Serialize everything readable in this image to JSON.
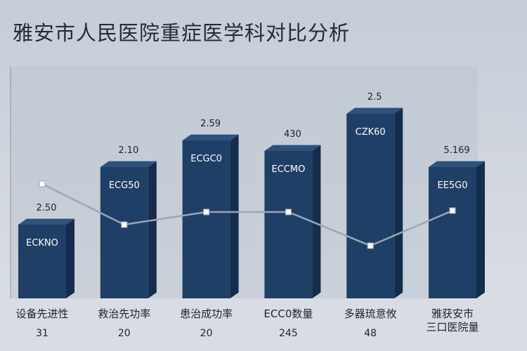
{
  "chart_data": {
    "type": "bar",
    "title": "雅安市人民医院重症医学科对比分析",
    "categories": [
      "设备先进性",
      "救治先功率",
      "患治成功率",
      "ECC0数量",
      "多器琉意攸",
      "雅获安市\n三口医院量"
    ],
    "values": [
      105,
      187,
      225,
      210,
      263,
      187
    ],
    "color": "#1f3f66",
    "value_labels": [
      "2.50",
      "2.10",
      "2.59",
      "430",
      "2.5",
      "5.169"
    ],
    "bar_texts": [
      "ECKNO",
      "ECG50",
      "ECGC0",
      "ECCMO",
      "CZK60",
      "EE5G0"
    ],
    "bottom_labels": [
      "31",
      "20",
      "20",
      "245",
      "48",
      null
    ],
    "line": {
      "color": "#9aa6bb",
      "values": [
        163,
        105,
        123,
        123,
        75,
        125
      ]
    }
  }
}
